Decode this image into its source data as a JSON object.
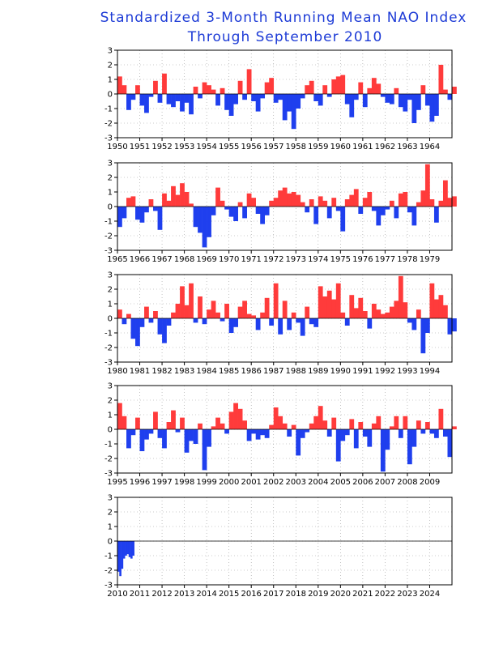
{
  "chart_data": {
    "type": "area",
    "title": "Standardized 3-Month Running Mean NAO Index",
    "subtitle": "Through September 2010",
    "colors": {
      "positive": "#ff3b3b",
      "negative": "#1f3fee",
      "title": "#1d3bd6"
    },
    "ylim": [
      -3,
      3
    ],
    "yticks": [
      3,
      2,
      1,
      0,
      -1,
      -2,
      -3
    ],
    "grid": true,
    "x_unit": "year",
    "panels": [
      {
        "xlim": [
          1950,
          1965
        ],
        "xticks": [
          "1950",
          "1951",
          "1952",
          "1953",
          "1954",
          "1955",
          "1956",
          "1957",
          "1958",
          "1959",
          "1960",
          "1961",
          "1962",
          "1963",
          "1964"
        ],
        "x": [
          1950.0,
          1950.2,
          1950.4,
          1950.6,
          1950.8,
          1951.0,
          1951.2,
          1951.4,
          1951.6,
          1951.8,
          1952.0,
          1952.2,
          1952.4,
          1952.6,
          1952.8,
          1953.0,
          1953.2,
          1953.4,
          1953.6,
          1953.8,
          1954.0,
          1954.2,
          1954.4,
          1954.6,
          1954.8,
          1955.0,
          1955.2,
          1955.4,
          1955.6,
          1955.8,
          1956.0,
          1956.2,
          1956.4,
          1956.6,
          1956.8,
          1957.0,
          1957.2,
          1957.4,
          1957.6,
          1957.8,
          1958.0,
          1958.2,
          1958.4,
          1958.6,
          1958.8,
          1959.0,
          1959.2,
          1959.4,
          1959.6,
          1959.8,
          1960.0,
          1960.2,
          1960.4,
          1960.6,
          1960.8,
          1961.0,
          1961.2,
          1961.4,
          1961.6,
          1961.8,
          1962.0,
          1962.2,
          1962.4,
          1962.6,
          1962.8,
          1963.0,
          1963.2,
          1963.4,
          1963.6,
          1963.8,
          1964.0,
          1964.2,
          1964.4,
          1964.6,
          1964.8,
          1965.0
        ],
        "y": [
          1.2,
          0.6,
          -1.1,
          -0.4,
          0.6,
          -0.8,
          -1.3,
          -0.2,
          0.9,
          -0.6,
          1.4,
          -0.7,
          -0.9,
          -0.5,
          -1.2,
          -0.6,
          -1.4,
          0.5,
          -0.3,
          0.8,
          0.6,
          0.3,
          -0.8,
          0.4,
          -1.1,
          -1.5,
          -0.7,
          0.9,
          -0.4,
          1.7,
          -0.5,
          -1.2,
          -0.3,
          0.8,
          1.1,
          -0.6,
          -0.4,
          -1.8,
          -1.2,
          -2.4,
          -1.0,
          -0.3,
          0.6,
          0.9,
          -0.5,
          -0.8,
          0.6,
          -0.2,
          1.0,
          1.2,
          1.3,
          -0.7,
          -1.6,
          -0.4,
          0.8,
          -0.9,
          0.4,
          1.1,
          0.7,
          -0.2,
          -0.6,
          -0.7,
          0.4,
          -0.9,
          -1.2,
          -0.4,
          -2.0,
          -1.1,
          0.6,
          -0.8,
          -1.9,
          -1.5,
          2.0,
          0.3,
          -0.4,
          0.5
        ]
      },
      {
        "xlim": [
          1965,
          1980
        ],
        "xticks": [
          "1965",
          "1966",
          "1967",
          "1968",
          "1969",
          "1970",
          "1971",
          "1972",
          "1973",
          "1974",
          "1975",
          "1976",
          "1977",
          "1978",
          "1979"
        ],
        "x": [
          1965.0,
          1965.2,
          1965.4,
          1965.6,
          1965.8,
          1966.0,
          1966.2,
          1966.4,
          1966.6,
          1966.8,
          1967.0,
          1967.2,
          1967.4,
          1967.6,
          1967.8,
          1968.0,
          1968.2,
          1968.4,
          1968.6,
          1968.8,
          1969.0,
          1969.2,
          1969.4,
          1969.6,
          1969.8,
          1970.0,
          1970.2,
          1970.4,
          1970.6,
          1970.8,
          1971.0,
          1971.2,
          1971.4,
          1971.6,
          1971.8,
          1972.0,
          1972.2,
          1972.4,
          1972.6,
          1972.8,
          1973.0,
          1973.2,
          1973.4,
          1973.6,
          1973.8,
          1974.0,
          1974.2,
          1974.4,
          1974.6,
          1974.8,
          1975.0,
          1975.2,
          1975.4,
          1975.6,
          1975.8,
          1976.0,
          1976.2,
          1976.4,
          1976.6,
          1976.8,
          1977.0,
          1977.2,
          1977.4,
          1977.6,
          1977.8,
          1978.0,
          1978.2,
          1978.4,
          1978.6,
          1978.8,
          1979.0,
          1979.2,
          1979.4,
          1979.6,
          1979.8,
          1980.0
        ],
        "y": [
          -1.4,
          -0.8,
          0.6,
          0.7,
          -0.9,
          -1.1,
          -0.4,
          0.5,
          -0.3,
          -1.6,
          0.9,
          0.4,
          1.4,
          0.8,
          1.6,
          1.0,
          0.2,
          -1.4,
          -1.8,
          -2.8,
          -2.1,
          -0.6,
          1.3,
          0.4,
          -0.2,
          -0.7,
          -1.0,
          0.3,
          -0.8,
          0.9,
          0.6,
          -0.5,
          -1.2,
          -0.6,
          0.4,
          0.6,
          1.1,
          1.3,
          0.9,
          1.0,
          0.8,
          0.3,
          -0.4,
          0.5,
          -1.2,
          0.7,
          0.4,
          -0.8,
          0.6,
          -0.3,
          -1.7,
          0.5,
          0.8,
          1.2,
          -0.5,
          0.6,
          1.0,
          -0.3,
          -1.3,
          -0.6,
          -0.2,
          0.4,
          -0.8,
          0.9,
          1.0,
          -0.4,
          -1.3,
          0.3,
          1.1,
          2.9,
          0.5,
          -1.1,
          0.4,
          1.8,
          0.6,
          0.7
        ]
      },
      {
        "xlim": [
          1980,
          1995
        ],
        "xticks": [
          "1980",
          "1981",
          "1982",
          "1983",
          "1984",
          "1985",
          "1986",
          "1987",
          "1988",
          "1989",
          "1990",
          "1991",
          "1992",
          "1993",
          "1994"
        ],
        "x": [
          1980.0,
          1980.2,
          1980.4,
          1980.6,
          1980.8,
          1981.0,
          1981.2,
          1981.4,
          1981.6,
          1981.8,
          1982.0,
          1982.2,
          1982.4,
          1982.6,
          1982.8,
          1983.0,
          1983.2,
          1983.4,
          1983.6,
          1983.8,
          1984.0,
          1984.2,
          1984.4,
          1984.6,
          1984.8,
          1985.0,
          1985.2,
          1985.4,
          1985.6,
          1985.8,
          1986.0,
          1986.2,
          1986.4,
          1986.6,
          1986.8,
          1987.0,
          1987.2,
          1987.4,
          1987.6,
          1987.8,
          1988.0,
          1988.2,
          1988.4,
          1988.6,
          1988.8,
          1989.0,
          1989.2,
          1989.4,
          1989.6,
          1989.8,
          1990.0,
          1990.2,
          1990.4,
          1990.6,
          1990.8,
          1991.0,
          1991.2,
          1991.4,
          1991.6,
          1991.8,
          1992.0,
          1992.2,
          1992.4,
          1992.6,
          1992.8,
          1993.0,
          1993.2,
          1993.4,
          1993.6,
          1993.8,
          1994.0,
          1994.2,
          1994.4,
          1994.6,
          1994.8,
          1995.0
        ],
        "y": [
          0.6,
          -0.4,
          0.3,
          -1.4,
          -1.9,
          -0.6,
          0.8,
          -0.3,
          0.5,
          -1.1,
          -1.7,
          -0.5,
          0.4,
          1.0,
          2.2,
          0.9,
          2.4,
          -0.3,
          1.5,
          -0.4,
          0.6,
          1.2,
          0.4,
          -0.2,
          1.0,
          -1.0,
          -0.6,
          0.8,
          1.2,
          0.3,
          0.2,
          -0.8,
          0.4,
          1.4,
          -0.5,
          2.4,
          -1.1,
          1.2,
          -0.8,
          0.4,
          -0.3,
          -1.2,
          0.8,
          -0.4,
          -0.6,
          2.2,
          1.5,
          1.9,
          1.3,
          2.4,
          0.4,
          -0.5,
          1.6,
          0.7,
          1.4,
          0.5,
          -0.7,
          1.0,
          0.6,
          0.3,
          0.4,
          0.8,
          1.2,
          2.9,
          1.1,
          -0.3,
          -0.8,
          0.6,
          -2.4,
          -1.0,
          2.4,
          1.3,
          1.6,
          0.9,
          -1.1,
          -0.9
        ]
      },
      {
        "xlim": [
          1995,
          2010
        ],
        "xticks": [
          "1995",
          "1996",
          "1997",
          "1998",
          "1999",
          "2000",
          "2001",
          "2002",
          "2003",
          "2004",
          "2005",
          "2006",
          "2007",
          "2008",
          "2009"
        ],
        "x": [
          1995.0,
          1995.2,
          1995.4,
          1995.6,
          1995.8,
          1996.0,
          1996.2,
          1996.4,
          1996.6,
          1996.8,
          1997.0,
          1997.2,
          1997.4,
          1997.6,
          1997.8,
          1998.0,
          1998.2,
          1998.4,
          1998.6,
          1998.8,
          1999.0,
          1999.2,
          1999.4,
          1999.6,
          1999.8,
          2000.0,
          2000.2,
          2000.4,
          2000.6,
          2000.8,
          2001.0,
          2001.2,
          2001.4,
          2001.6,
          2001.8,
          2002.0,
          2002.2,
          2002.4,
          2002.6,
          2002.8,
          2003.0,
          2003.2,
          2003.4,
          2003.6,
          2003.8,
          2004.0,
          2004.2,
          2004.4,
          2004.6,
          2004.8,
          2005.0,
          2005.2,
          2005.4,
          2005.6,
          2005.8,
          2006.0,
          2006.2,
          2006.4,
          2006.6,
          2006.8,
          2007.0,
          2007.2,
          2007.4,
          2007.6,
          2007.8,
          2008.0,
          2008.2,
          2008.4,
          2008.6,
          2008.8,
          2009.0,
          2009.2,
          2009.4,
          2009.6,
          2009.8,
          2010.0
        ],
        "y": [
          1.8,
          0.9,
          -1.3,
          -0.4,
          0.8,
          -1.5,
          -0.7,
          -0.3,
          1.2,
          -0.6,
          -1.3,
          0.5,
          1.3,
          -0.2,
          0.8,
          -1.6,
          -0.8,
          -1.0,
          0.4,
          -2.8,
          -1.2,
          0.2,
          0.8,
          0.4,
          -0.3,
          1.2,
          1.8,
          1.4,
          0.6,
          -0.8,
          -0.3,
          -0.7,
          -0.4,
          -0.6,
          0.3,
          1.5,
          0.9,
          0.4,
          -0.5,
          0.3,
          -1.8,
          -0.6,
          -0.2,
          0.4,
          0.9,
          1.6,
          0.6,
          -0.5,
          0.8,
          -2.2,
          -0.8,
          -0.4,
          0.7,
          -1.3,
          0.5,
          -0.5,
          -1.2,
          0.4,
          0.9,
          -2.9,
          -1.4,
          0.2,
          0.9,
          -0.6,
          0.9,
          -2.4,
          -1.2,
          0.6,
          -0.3,
          0.5,
          -0.3,
          -0.6,
          1.4,
          -0.5,
          -1.9,
          0.2
        ]
      },
      {
        "xlim": [
          2010,
          2025
        ],
        "xticks": [
          "2010",
          "2011",
          "2012",
          "2013",
          "2014",
          "2015",
          "2016",
          "2017",
          "2018",
          "2019",
          "2020",
          "2021",
          "2022",
          "2023",
          "2024"
        ],
        "x": [
          2010.0,
          2010.083,
          2010.167,
          2010.25,
          2010.333,
          2010.417,
          2010.5,
          2010.583,
          2010.667
        ],
        "y": [
          -2.1,
          -2.4,
          -1.9,
          -1.2,
          -1.0,
          -0.9,
          -1.1,
          -1.2,
          -1.0
        ]
      }
    ]
  }
}
